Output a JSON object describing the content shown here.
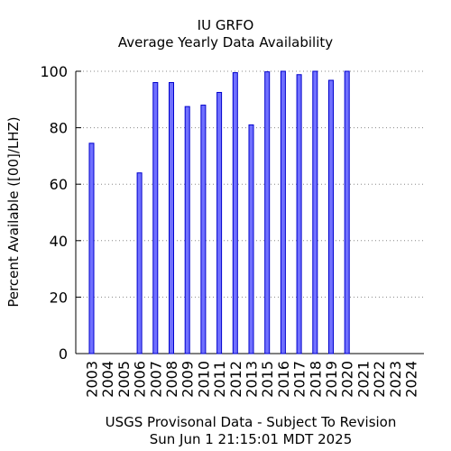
{
  "chart_data": {
    "type": "bar",
    "title": "IU GRFO",
    "subtitle": "Average Yearly Data Availability",
    "ylabel": "Percent Available ([00]/LHZ)",
    "xlabel": "",
    "footer": [
      "USGS Provisonal Data - Subject To Revision",
      "Sun Jun  1 21:15:01 MDT 2025"
    ],
    "ylim": [
      0,
      100
    ],
    "yticks": [
      0,
      20,
      40,
      60,
      80,
      100
    ],
    "grid": "horizontal-dotted",
    "bar_color": "#7070ff",
    "bar_edge_color": "#0000cc",
    "categories": [
      "2003",
      "2004",
      "2005",
      "2006",
      "2007",
      "2008",
      "2009",
      "2010",
      "2011",
      "2012",
      "2013",
      "2015",
      "2016",
      "2017",
      "2018",
      "2019",
      "2020",
      "2021",
      "2022",
      "2023",
      "2024"
    ],
    "values": [
      74.5,
      0,
      0,
      64,
      96,
      96,
      87.5,
      88,
      92.5,
      99.5,
      81,
      99.8,
      100,
      98.8,
      100,
      96.8,
      100,
      0,
      0,
      0,
      0
    ]
  }
}
